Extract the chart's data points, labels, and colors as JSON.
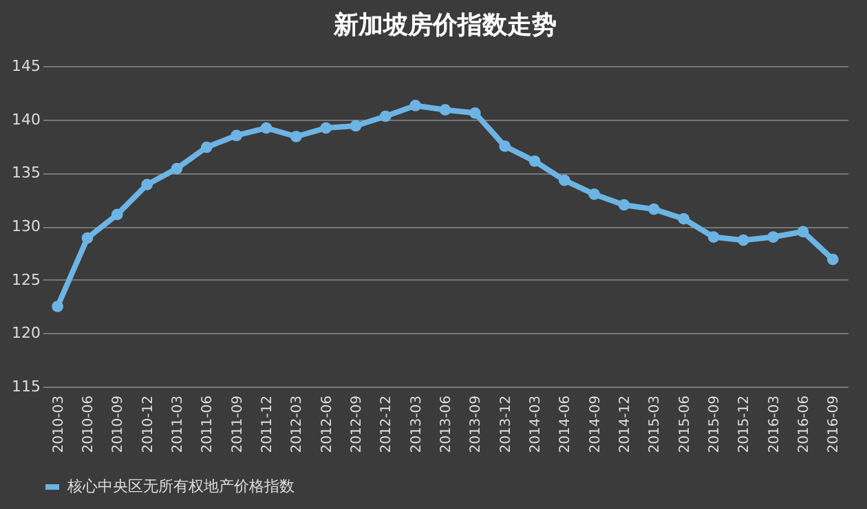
{
  "chart_data": {
    "type": "line",
    "title": "新加坡房价指数走势",
    "categories": [
      "2010-03",
      "2010-06",
      "2010-09",
      "2010-12",
      "2011-03",
      "2011-06",
      "2011-09",
      "2011-12",
      "2012-03",
      "2012-06",
      "2012-09",
      "2012-12",
      "2013-03",
      "2013-06",
      "2013-09",
      "2013-12",
      "2014-03",
      "2014-06",
      "2014-09",
      "2014-12",
      "2015-03",
      "2015-06",
      "2015-09",
      "2015-12",
      "2016-03",
      "2016-06",
      "2016-09"
    ],
    "series": [
      {
        "name": "核心中央区无所有权地产价格指数",
        "color": "#6cb4e4",
        "values": [
          122.5,
          128.9,
          131.1,
          133.9,
          135.4,
          137.4,
          138.5,
          139.2,
          138.4,
          139.2,
          139.4,
          140.3,
          141.3,
          140.9,
          140.6,
          137.5,
          136.1,
          134.3,
          133.0,
          132.0,
          131.6,
          130.7,
          129.0,
          128.7,
          129.0,
          129.5,
          126.9
        ]
      }
    ],
    "ylim": [
      115,
      145
    ],
    "yticks": [
      115,
      120,
      125,
      130,
      135,
      140,
      145
    ],
    "grid": "y",
    "legend": "bottom",
    "marker": "circle",
    "line_style": "solid"
  }
}
